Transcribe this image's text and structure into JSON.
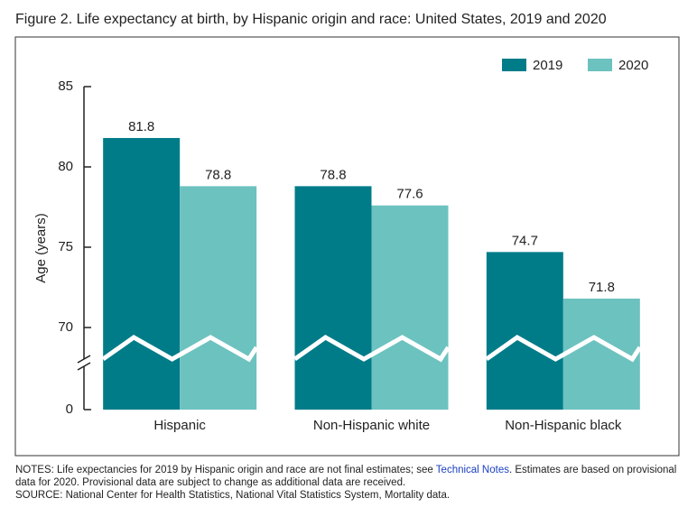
{
  "chart_data": {
    "type": "bar",
    "title": "Figure 2. Life expectancy at birth, by Hispanic origin and race: United States, 2019 and 2020",
    "y_label": "Age (years)",
    "categories": [
      "Hispanic",
      "Non-Hispanic white",
      "Non-Hispanic black"
    ],
    "series": [
      {
        "name": "2019",
        "color": "#007c89",
        "values": [
          81.8,
          78.8,
          74.7
        ]
      },
      {
        "name": "2020",
        "color": "#6cc2bf",
        "values": [
          78.8,
          77.6,
          71.8
        ]
      }
    ],
    "ylim": [
      0,
      85
    ],
    "yticks": [
      0,
      70,
      75,
      80,
      85
    ],
    "axis_break": true,
    "legend": "top-right",
    "grid": false
  },
  "notes": {
    "before": "NOTES: Life expectancies for 2019 by Hispanic origin and race are not final estimates; see ",
    "link": "Technical Notes",
    "after": ". Estimates are based on provisional data for 2020. Provisional data are subject to change as additional data are received."
  },
  "source": "SOURCE: National Center for Health Statistics, National Vital Statistics System, Mortality data."
}
